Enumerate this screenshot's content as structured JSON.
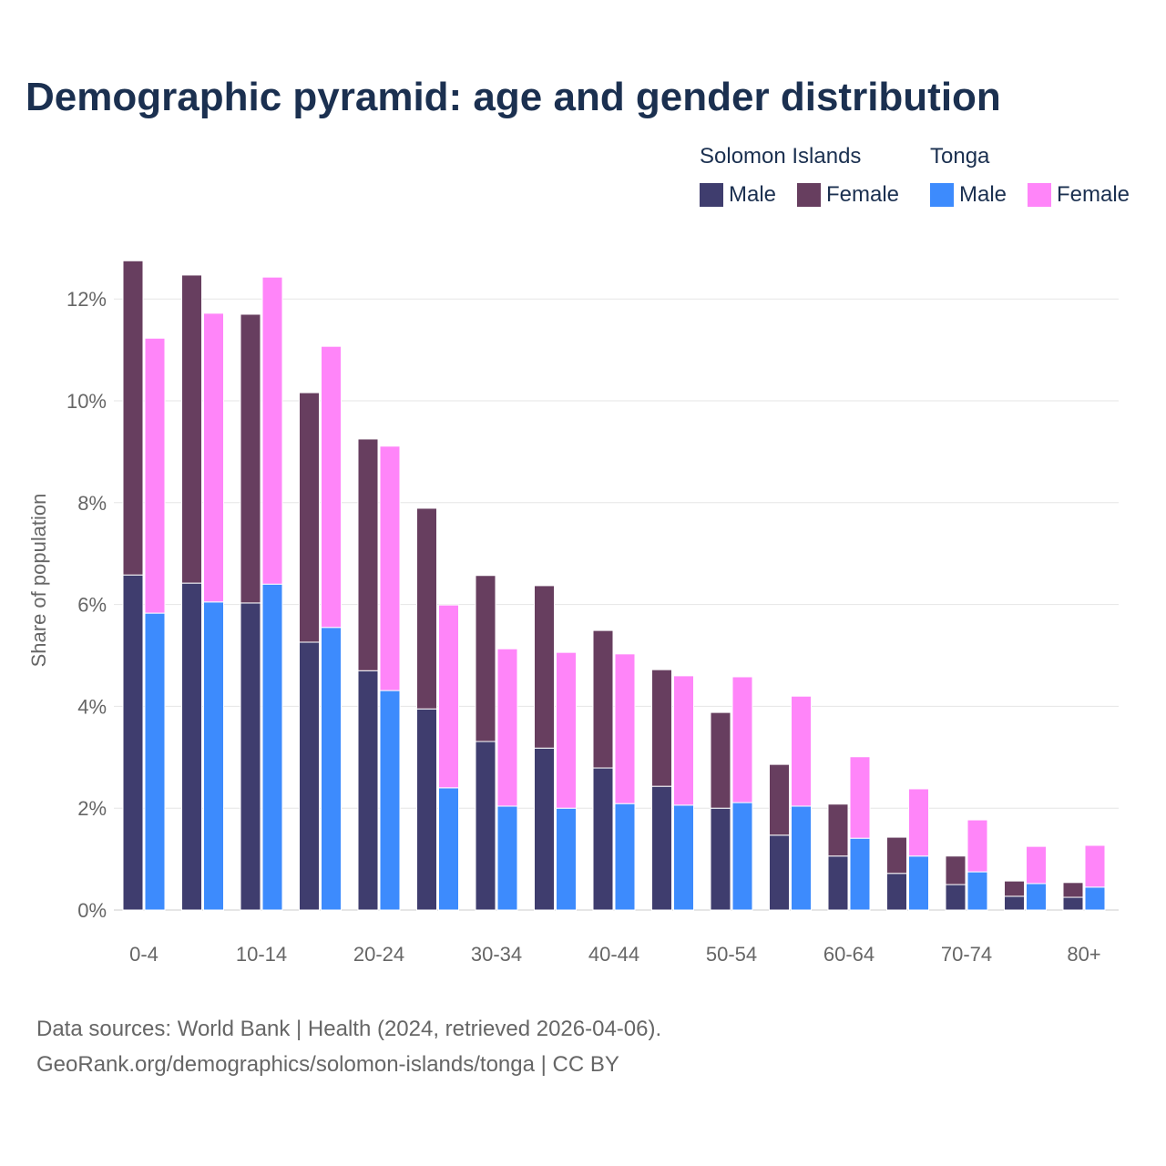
{
  "chart_data": {
    "type": "bar",
    "title": "Demographic pyramid: age and gender distribution",
    "ylabel": "Share of population",
    "xlabel": "",
    "ylim": [
      0,
      13
    ],
    "yticks": [
      "0%",
      "2%",
      "4%",
      "6%",
      "8%",
      "10%",
      "12%"
    ],
    "ytick_values": [
      0,
      2,
      4,
      6,
      8,
      10,
      12
    ],
    "grid": true,
    "legend_placement": "top-right",
    "categories": [
      "0-4",
      "5-9",
      "10-14",
      "15-19",
      "20-24",
      "25-29",
      "30-34",
      "35-39",
      "40-44",
      "45-49",
      "50-54",
      "55-59",
      "60-64",
      "65-69",
      "70-74",
      "75-79",
      "80+"
    ],
    "shown_tick_labels": [
      "0-4",
      "10-14",
      "20-24",
      "30-34",
      "40-44",
      "50-54",
      "60-64",
      "70-74",
      "80+"
    ],
    "groups": [
      {
        "name": "Solomon Islands",
        "series": [
          {
            "name": "Male",
            "color": "#3f3d6e",
            "values": [
              6.58,
              6.42,
              6.03,
              5.26,
              4.7,
              3.95,
              3.31,
              3.18,
              2.79,
              2.43,
              2.0,
              1.47,
              1.06,
              0.72,
              0.5,
              0.27,
              0.25
            ]
          },
          {
            "name": "Female",
            "color": "#673e5f",
            "values": [
              6.17,
              6.05,
              5.67,
              4.9,
              4.55,
              3.94,
              3.26,
              3.19,
              2.7,
              2.29,
              1.88,
              1.39,
              1.02,
              0.71,
              0.56,
              0.3,
              0.29
            ]
          }
        ]
      },
      {
        "name": "Tonga",
        "series": [
          {
            "name": "Male",
            "color": "#3d8bfd",
            "values": [
              5.83,
              6.05,
              6.4,
              5.55,
              4.31,
              2.4,
              2.04,
              2.0,
              2.09,
              2.06,
              2.11,
              2.04,
              1.41,
              1.06,
              0.75,
              0.52,
              0.45
            ]
          },
          {
            "name": "Female",
            "color": "#ff85f9",
            "values": [
              5.4,
              5.67,
              6.03,
              5.52,
              4.8,
              3.59,
              3.09,
              3.06,
              2.94,
              2.54,
              2.47,
              2.16,
              1.6,
              1.32,
              1.02,
              0.73,
              0.82
            ]
          }
        ]
      }
    ]
  },
  "footer": {
    "line1": "Data sources: World Bank | Health (2024, retrieved 2026-04-06).",
    "line2": "GeoRank.org/demographics/solomon-islands/tonga | CC BY"
  }
}
